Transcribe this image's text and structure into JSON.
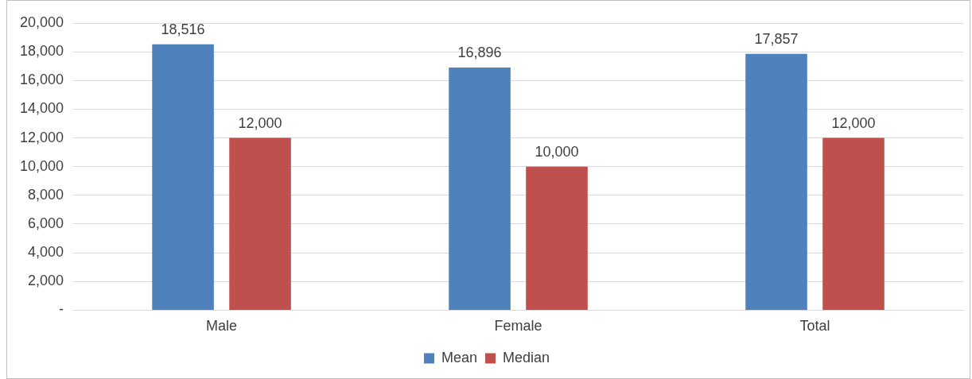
{
  "chart_data": {
    "type": "bar",
    "categories": [
      "Male",
      "Female",
      "Total"
    ],
    "series": [
      {
        "name": "Mean",
        "color": "#4f81bd",
        "values": [
          18516,
          16896,
          17857
        ],
        "value_labels": [
          "18,516",
          "16,896",
          "17,857"
        ]
      },
      {
        "name": "Median",
        "color": "#c0504d",
        "values": [
          12000,
          10000,
          12000
        ],
        "value_labels": [
          "12,000",
          "10,000",
          "12,000"
        ]
      }
    ],
    "ylim": [
      0,
      20000
    ],
    "yticks": [
      {
        "value": 0,
        "label": "-"
      },
      {
        "value": 2000,
        "label": "2,000"
      },
      {
        "value": 4000,
        "label": "4,000"
      },
      {
        "value": 6000,
        "label": "6,000"
      },
      {
        "value": 8000,
        "label": "8,000"
      },
      {
        "value": 10000,
        "label": "10,000"
      },
      {
        "value": 12000,
        "label": "12,000"
      },
      {
        "value": 14000,
        "label": "14,000"
      },
      {
        "value": 16000,
        "label": "16,000"
      },
      {
        "value": 18000,
        "label": "18,000"
      },
      {
        "value": 20000,
        "label": "20,000"
      }
    ],
    "grid": "y",
    "legend": "bottom"
  }
}
